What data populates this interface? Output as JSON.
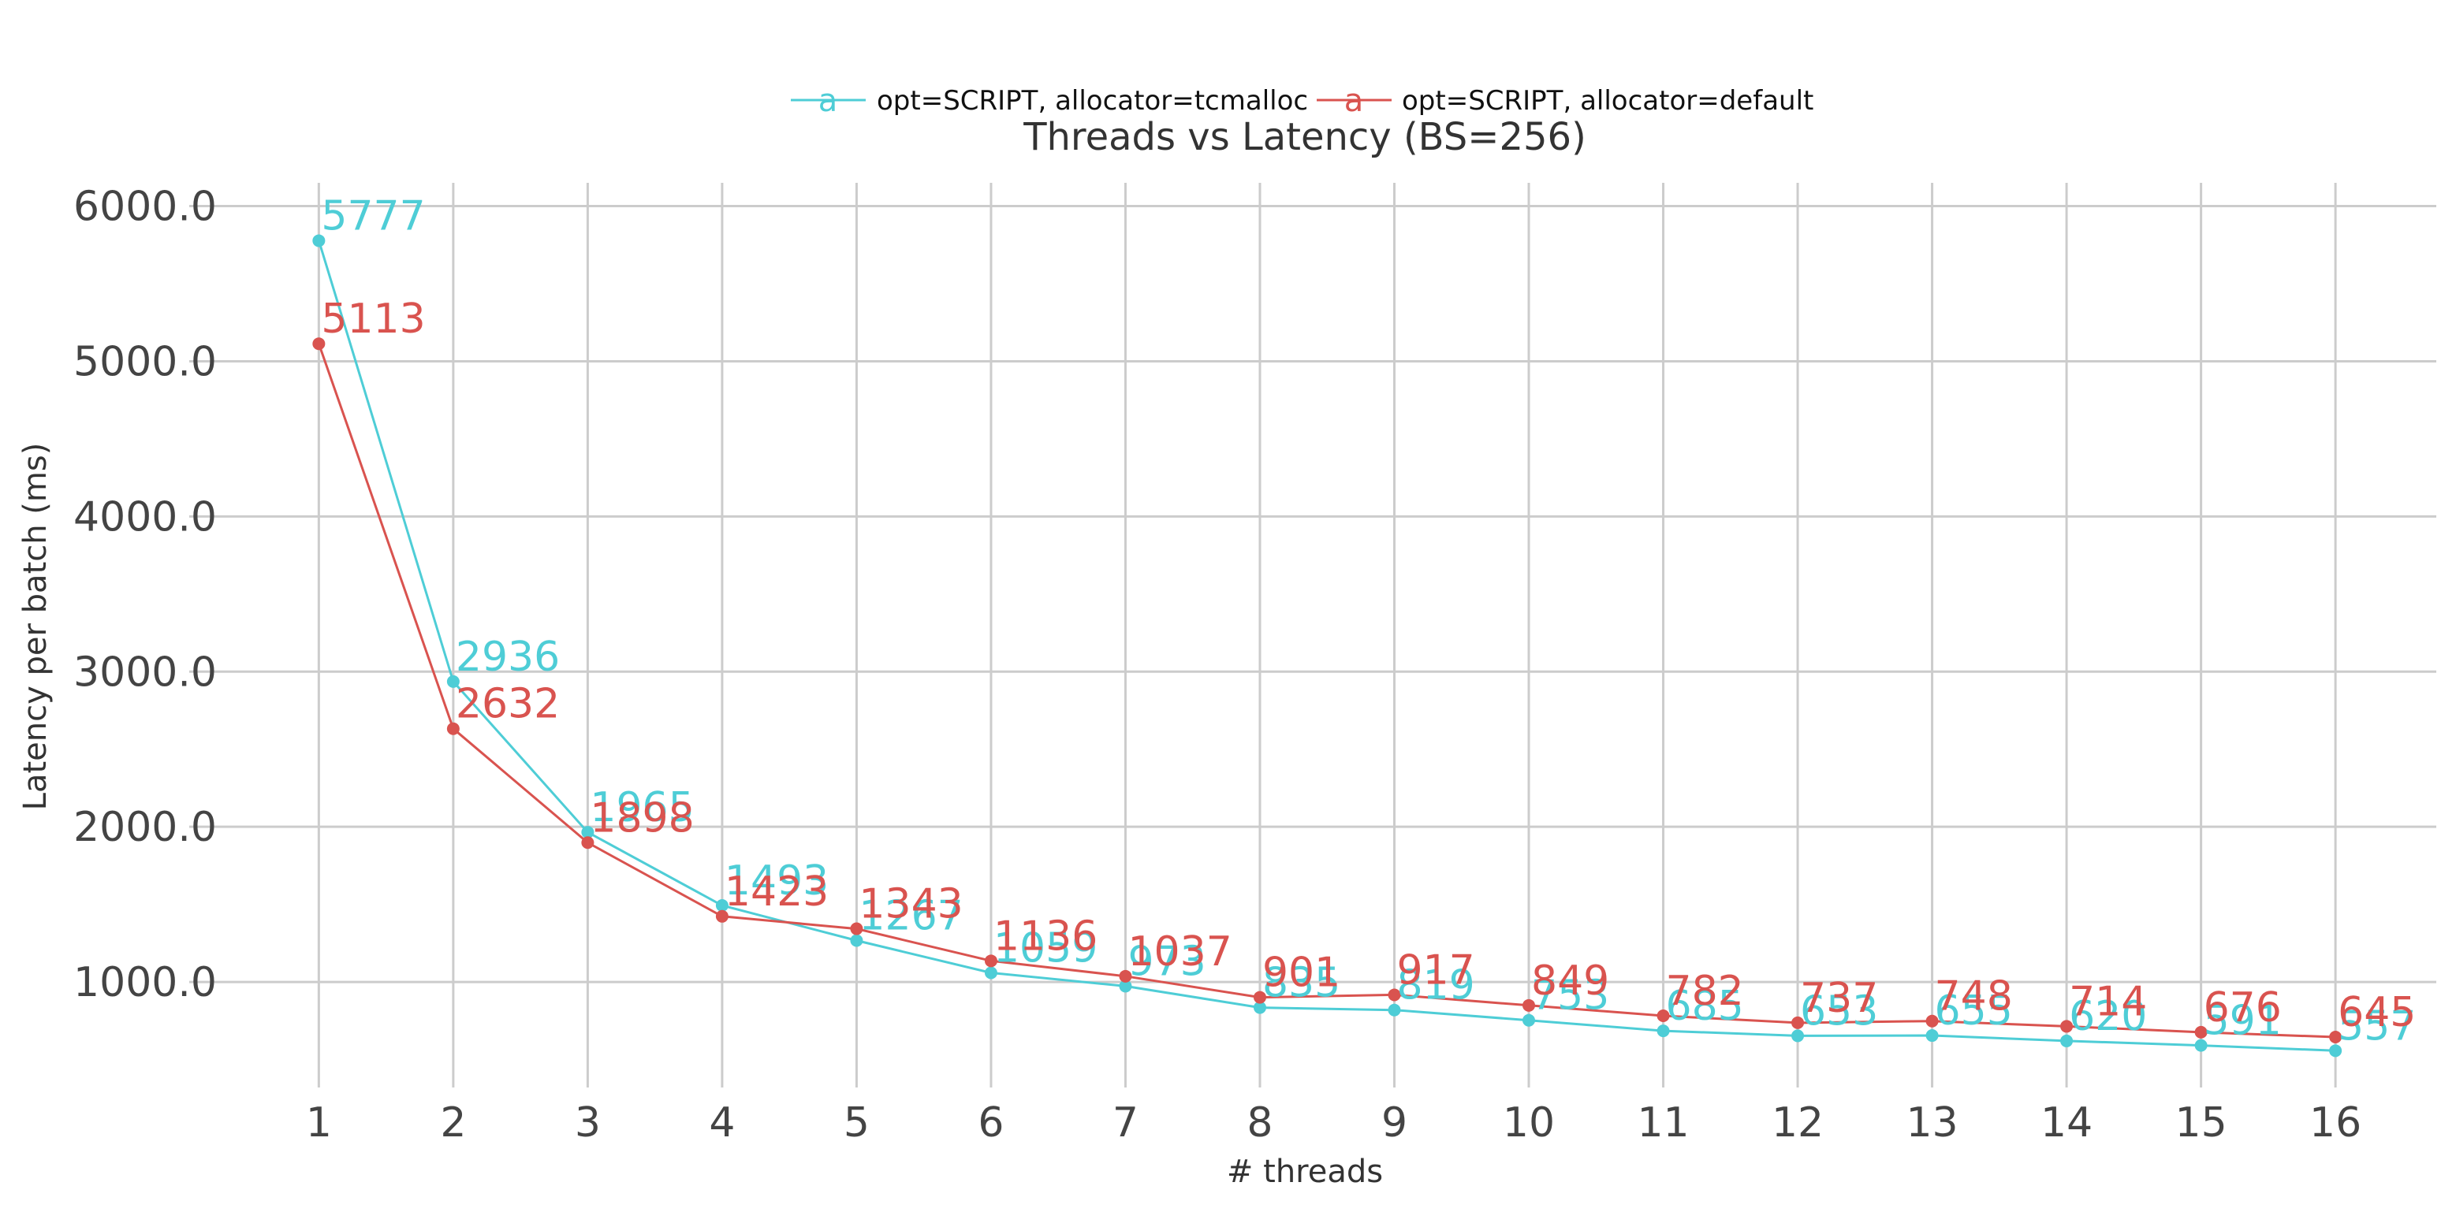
{
  "chart_data": {
    "type": "line",
    "title": "Threads vs Latency (BS=256)",
    "xlabel": "# threads",
    "ylabel": "Latency per batch (ms)",
    "x": [
      1,
      2,
      3,
      4,
      5,
      6,
      7,
      8,
      9,
      10,
      11,
      12,
      13,
      14,
      15,
      16
    ],
    "x_tick_labels": [
      "1",
      "2",
      "3",
      "4",
      "5",
      "6",
      "7",
      "8",
      "9",
      "10",
      "11",
      "12",
      "13",
      "14",
      "15",
      "16"
    ],
    "y_tick_values": [
      1000,
      2000,
      3000,
      4000,
      5000,
      6000
    ],
    "y_tick_labels": [
      "1000.0",
      "2000.0",
      "3000.0",
      "4000.0",
      "5000.0",
      "6000.0"
    ],
    "xlim": [
      0.3,
      16.75
    ],
    "ylim": [
      320,
      6150
    ],
    "grid": true,
    "legend_position": "top-center",
    "series": [
      {
        "name": "opt=SCRIPT, allocator=tcmalloc",
        "color": "#4ecdd6",
        "values": [
          5777,
          2936,
          1965,
          1493,
          1267,
          1059,
          973,
          835,
          819,
          753,
          685,
          653,
          655,
          620,
          591,
          557
        ],
        "labels": [
          "5777",
          "2936",
          "1965",
          "1493",
          "1267",
          "1059",
          "973",
          "835",
          "819",
          "753",
          "685",
          "653",
          "655",
          "620",
          "591",
          "557"
        ]
      },
      {
        "name": "opt=SCRIPT, allocator=default",
        "color": "#d9534f",
        "values": [
          5113,
          2632,
          1898,
          1423,
          1343,
          1136,
          1037,
          901,
          917,
          849,
          782,
          737,
          748,
          714,
          676,
          645
        ],
        "labels": [
          "5113",
          "2632",
          "1898",
          "1423",
          "1343",
          "1136",
          "1037",
          "901",
          "917",
          "849",
          "782",
          "737",
          "748",
          "714",
          "676",
          "645"
        ]
      }
    ]
  }
}
